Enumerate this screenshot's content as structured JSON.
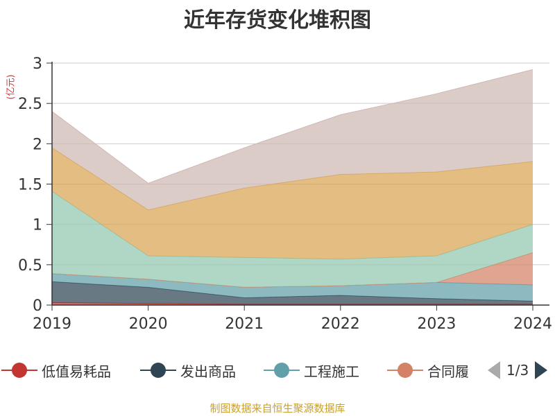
{
  "title": "近年存货变化堆积图",
  "unit": "(亿元)",
  "source": "制图数据来自恒生聚源数据库",
  "legend": {
    "items": [
      {
        "label": "低值易耗品",
        "color": "#c23531"
      },
      {
        "label": "发出商品",
        "color": "#2f4554"
      },
      {
        "label": "工程施工",
        "color": "#61a0a8"
      },
      {
        "label": "合同履",
        "color": "#d48265"
      }
    ],
    "page_text": "1/3"
  },
  "chart_data": {
    "type": "area",
    "stacked": true,
    "title": "近年存货变化堆积图",
    "ylabel": "(亿元)",
    "x": [
      "2019",
      "2020",
      "2021",
      "2022",
      "2023",
      "2024"
    ],
    "yticks": [
      "0",
      "0.5",
      "1",
      "1.5",
      "2",
      "2.5",
      "3"
    ],
    "ylim": [
      0,
      3
    ],
    "grid": true,
    "series": [
      {
        "name": "低值易耗品",
        "color": "#c23531",
        "values": [
          0.03,
          0.02,
          0.01,
          0.01,
          0.01,
          0.01
        ]
      },
      {
        "name": "发出商品",
        "color": "#2f4554",
        "values": [
          0.26,
          0.2,
          0.08,
          0.11,
          0.07,
          0.04
        ]
      },
      {
        "name": "工程施工",
        "color": "#61a0a8",
        "values": [
          0.1,
          0.1,
          0.13,
          0.12,
          0.2,
          0.2
        ]
      },
      {
        "color": "#d48265",
        "values": [
          0.0,
          0.0,
          0.0,
          0.0,
          0.0,
          0.4
        ]
      },
      {
        "color": "#91c7ae",
        "values": [
          1.02,
          0.29,
          0.37,
          0.33,
          0.33,
          0.35
        ]
      },
      {
        "color": "#d8a452",
        "values": [
          0.54,
          0.57,
          0.86,
          1.05,
          1.04,
          0.78
        ]
      },
      {
        "color": "#cfb8b3",
        "values": [
          0.45,
          0.33,
          0.5,
          0.74,
          0.97,
          1.14
        ]
      }
    ]
  }
}
